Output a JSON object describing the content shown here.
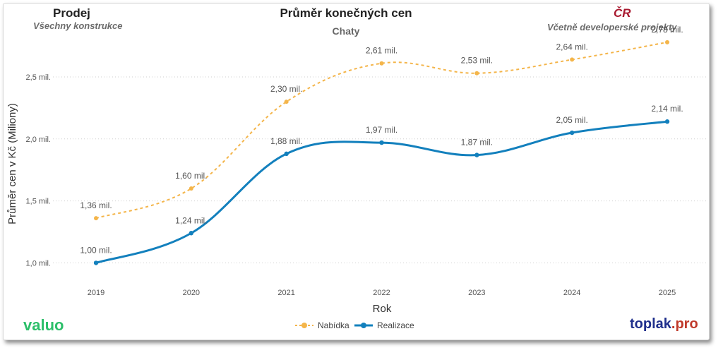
{
  "header": {
    "left_title": "Prodej",
    "left_subtitle": "Všechny konstrukce",
    "center_title": "Průměr konečných cen",
    "center_subtitle": "Chaty",
    "right_title": "ČR",
    "right_subtitle": "Včetně developerské projekty"
  },
  "branding": {
    "left": "valuo",
    "right_main": "toplak",
    "right_suffix": ".pro"
  },
  "chart_data": {
    "type": "line",
    "title": "Průměr konečných cen",
    "subtitle": "Chaty",
    "xlabel": "Rok",
    "ylabel": "Průměr cen v Kč (Miliony)",
    "categories": [
      "2019",
      "2020",
      "2021",
      "2022",
      "2023",
      "2024",
      "2025"
    ],
    "ylim": [
      0.82,
      2.95
    ],
    "yticks": [
      1.0,
      1.5,
      2.0,
      2.5
    ],
    "ytick_labels": [
      "1,0 mil.",
      "1,5 mil.",
      "2,0 mil.",
      "2,5 mil."
    ],
    "grid": true,
    "legend_position": "bottom-center",
    "series": [
      {
        "name": "Nabídka",
        "values": [
          1.36,
          1.6,
          2.3,
          2.61,
          2.53,
          2.64,
          2.78
        ],
        "labels": [
          "1,36 mil.",
          "1,60 mil.",
          "2,30 mil.",
          "2,61 mil.",
          "2,53 mil.",
          "2,64 mil.",
          "2,78 mil."
        ],
        "color": "#f4b54a",
        "style": "dashed"
      },
      {
        "name": "Realizace",
        "values": [
          1.0,
          1.24,
          1.88,
          1.97,
          1.87,
          2.05,
          2.14
        ],
        "labels": [
          "1,00 mil.",
          "1,24 mil.",
          "1,88 mil.",
          "1,97 mil.",
          "1,87 mil.",
          "2,05 mil.",
          "2,14 mil."
        ],
        "color": "#1380bd",
        "style": "solid"
      }
    ]
  }
}
